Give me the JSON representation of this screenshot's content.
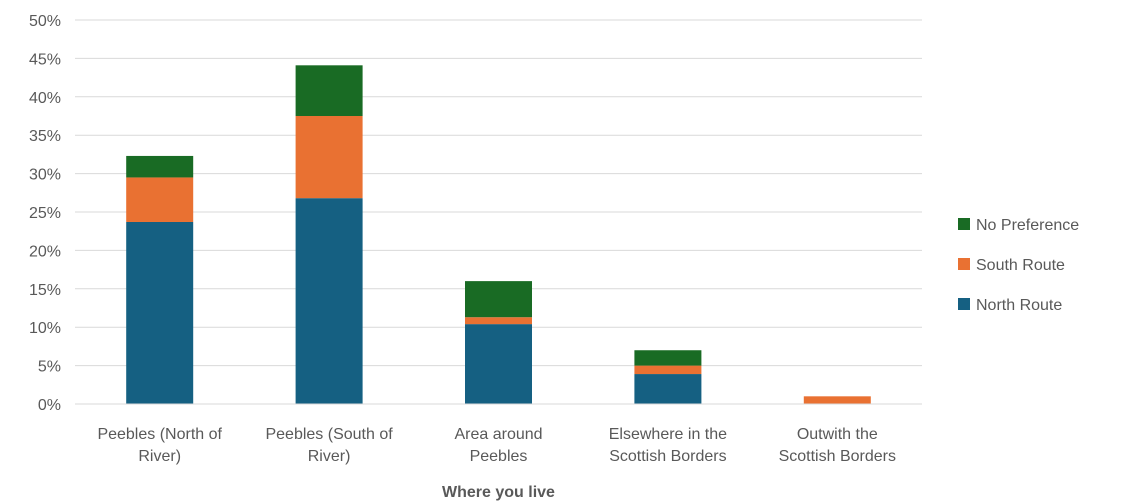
{
  "chart_data": {
    "type": "bar",
    "stacked": true,
    "title": "",
    "xlabel": "Where you live",
    "ylabel": "",
    "ylim": [
      0,
      0.5
    ],
    "yticks": [
      0,
      0.05,
      0.1,
      0.15,
      0.2,
      0.25,
      0.3,
      0.35,
      0.4,
      0.45,
      0.5
    ],
    "ytick_labels": [
      "0%",
      "5%",
      "10%",
      "15%",
      "20%",
      "25%",
      "30%",
      "35%",
      "40%",
      "45%",
      "50%"
    ],
    "grid": true,
    "legend_position": "right",
    "categories": [
      [
        "Peebles (North of",
        "River)"
      ],
      [
        "Peebles (South of",
        "River)"
      ],
      [
        "Area around",
        "Peebles"
      ],
      [
        "Elsewhere in the",
        "Scottish Borders"
      ],
      [
        "Outwith the",
        "Scottish Borders"
      ]
    ],
    "series": [
      {
        "name": "North Route",
        "color": "#156082",
        "values": [
          0.237,
          0.268,
          0.104,
          0.039,
          0.0
        ]
      },
      {
        "name": "South Route",
        "color": "#E97132",
        "values": [
          0.058,
          0.107,
          0.009,
          0.011,
          0.01
        ]
      },
      {
        "name": "No Preference",
        "color": "#196B24",
        "values": [
          0.028,
          0.066,
          0.047,
          0.02,
          0.0
        ]
      }
    ],
    "legend_order": [
      "No Preference",
      "South Route",
      "North Route"
    ]
  }
}
